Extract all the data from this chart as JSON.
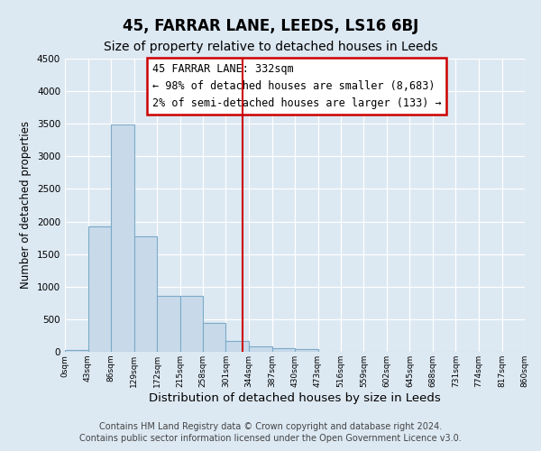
{
  "title": "45, FARRAR LANE, LEEDS, LS16 6BJ",
  "subtitle": "Size of property relative to detached houses in Leeds",
  "xlabel": "Distribution of detached houses by size in Leeds",
  "ylabel": "Number of detached properties",
  "bar_edges": [
    0,
    43,
    86,
    129,
    172,
    215,
    258,
    301,
    344,
    387,
    430,
    473,
    516,
    559,
    602,
    645,
    688,
    731,
    774,
    817,
    860
  ],
  "bar_heights": [
    30,
    1930,
    3490,
    1775,
    860,
    860,
    450,
    170,
    90,
    60,
    40,
    0,
    0,
    0,
    0,
    0,
    0,
    0,
    0,
    0
  ],
  "bar_color": "#c8daea",
  "bar_edge_color": "#7baac8",
  "vline_color": "#cc0000",
  "vline_x": 332,
  "annotation_line1": "45 FARRAR LANE: 332sqm",
  "annotation_line2": "← 98% of detached houses are smaller (8,683)",
  "annotation_line3": "2% of semi-detached houses are larger (133) →",
  "box_edge_color": "#cc0000",
  "ylim": [
    0,
    4500
  ],
  "yticks": [
    0,
    500,
    1000,
    1500,
    2000,
    2500,
    3000,
    3500,
    4000,
    4500
  ],
  "tick_labels": [
    "0sqm",
    "43sqm",
    "86sqm",
    "129sqm",
    "172sqm",
    "215sqm",
    "258sqm",
    "301sqm",
    "344sqm",
    "387sqm",
    "430sqm",
    "473sqm",
    "516sqm",
    "559sqm",
    "602sqm",
    "645sqm",
    "688sqm",
    "731sqm",
    "774sqm",
    "817sqm",
    "860sqm"
  ],
  "footnote1": "Contains HM Land Registry data © Crown copyright and database right 2024.",
  "footnote2": "Contains public sector information licensed under the Open Government Licence v3.0.",
  "background_color": "#dce8f2",
  "plot_bg_color": "#dce8f2",
  "grid_color": "#ffffff",
  "title_fontsize": 12,
  "subtitle_fontsize": 10,
  "xlabel_fontsize": 9.5,
  "ylabel_fontsize": 8.5,
  "annotation_fontsize": 8.5,
  "footnote_fontsize": 7
}
